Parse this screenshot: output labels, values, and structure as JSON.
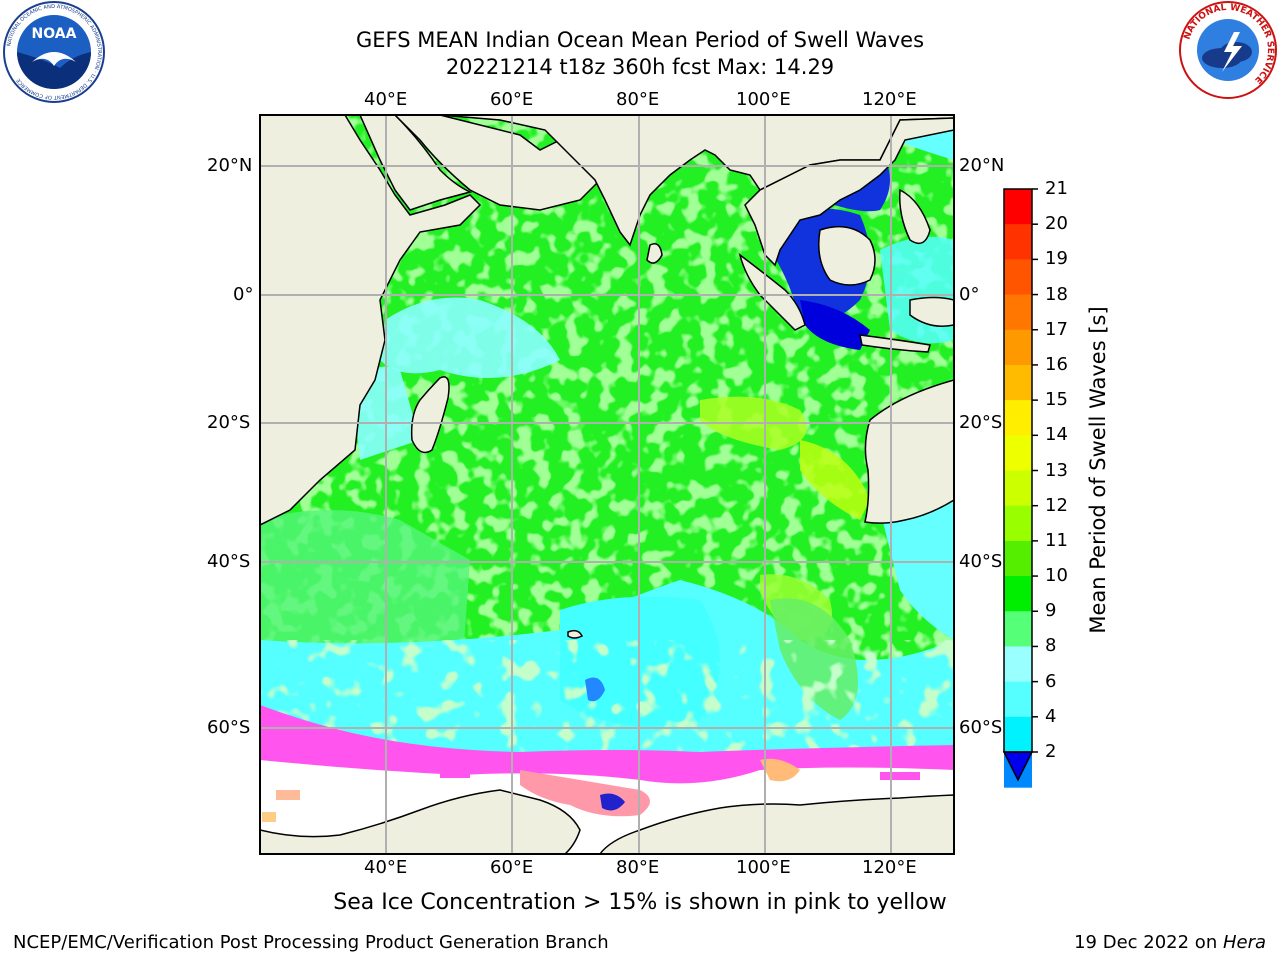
{
  "header": {
    "title_line1": "GEFS MEAN Indian Ocean Mean Period of Swell Waves",
    "title_line2": "20221214 t18z 360h fcst   Max: 14.29"
  },
  "logos": {
    "left": "NOAA",
    "right": "NATIONAL WEATHER SERVICE",
    "left_ring": "NATIONAL OCEANIC AND ATMOSPHERIC ADMINISTRATION · U.S. DEPARTMENT OF COMMERCE"
  },
  "map": {
    "lon_labels": [
      "40°E",
      "60°E",
      "80°E",
      "100°E",
      "120°E"
    ],
    "lat_labels": [
      "20°N",
      "0°",
      "20°S",
      "40°S",
      "60°S"
    ],
    "land_color": "#efefdf",
    "ice_color": "#ffffff",
    "grid_color": "#b0b0b0"
  },
  "colorbar": {
    "label": "Mean Period of Swell Waves [s]",
    "ticks": [
      "21",
      "20",
      "19",
      "18",
      "17",
      "16",
      "15",
      "14",
      "13",
      "12",
      "11",
      "10",
      "9",
      "8",
      "6",
      "4",
      "2"
    ],
    "colors": [
      "#ff0000",
      "#ff3300",
      "#ff5500",
      "#ff7700",
      "#ff9900",
      "#ffbb00",
      "#ffee00",
      "#eeff00",
      "#ccff00",
      "#99ff00",
      "#55ee00",
      "#00ee00",
      "#55ff77",
      "#99ffff",
      "#55ffff",
      "#00f2ff",
      "#0088ff"
    ],
    "under_color": "#0000ee"
  },
  "caption": "Sea Ice Concentration > 15% is shown in pink to yellow",
  "footer": {
    "left": "NCEP/EMC/Verification Post Processing Product Generation Branch",
    "right_prefix": "19 Dec 2022 on ",
    "right_host": "Hera"
  }
}
